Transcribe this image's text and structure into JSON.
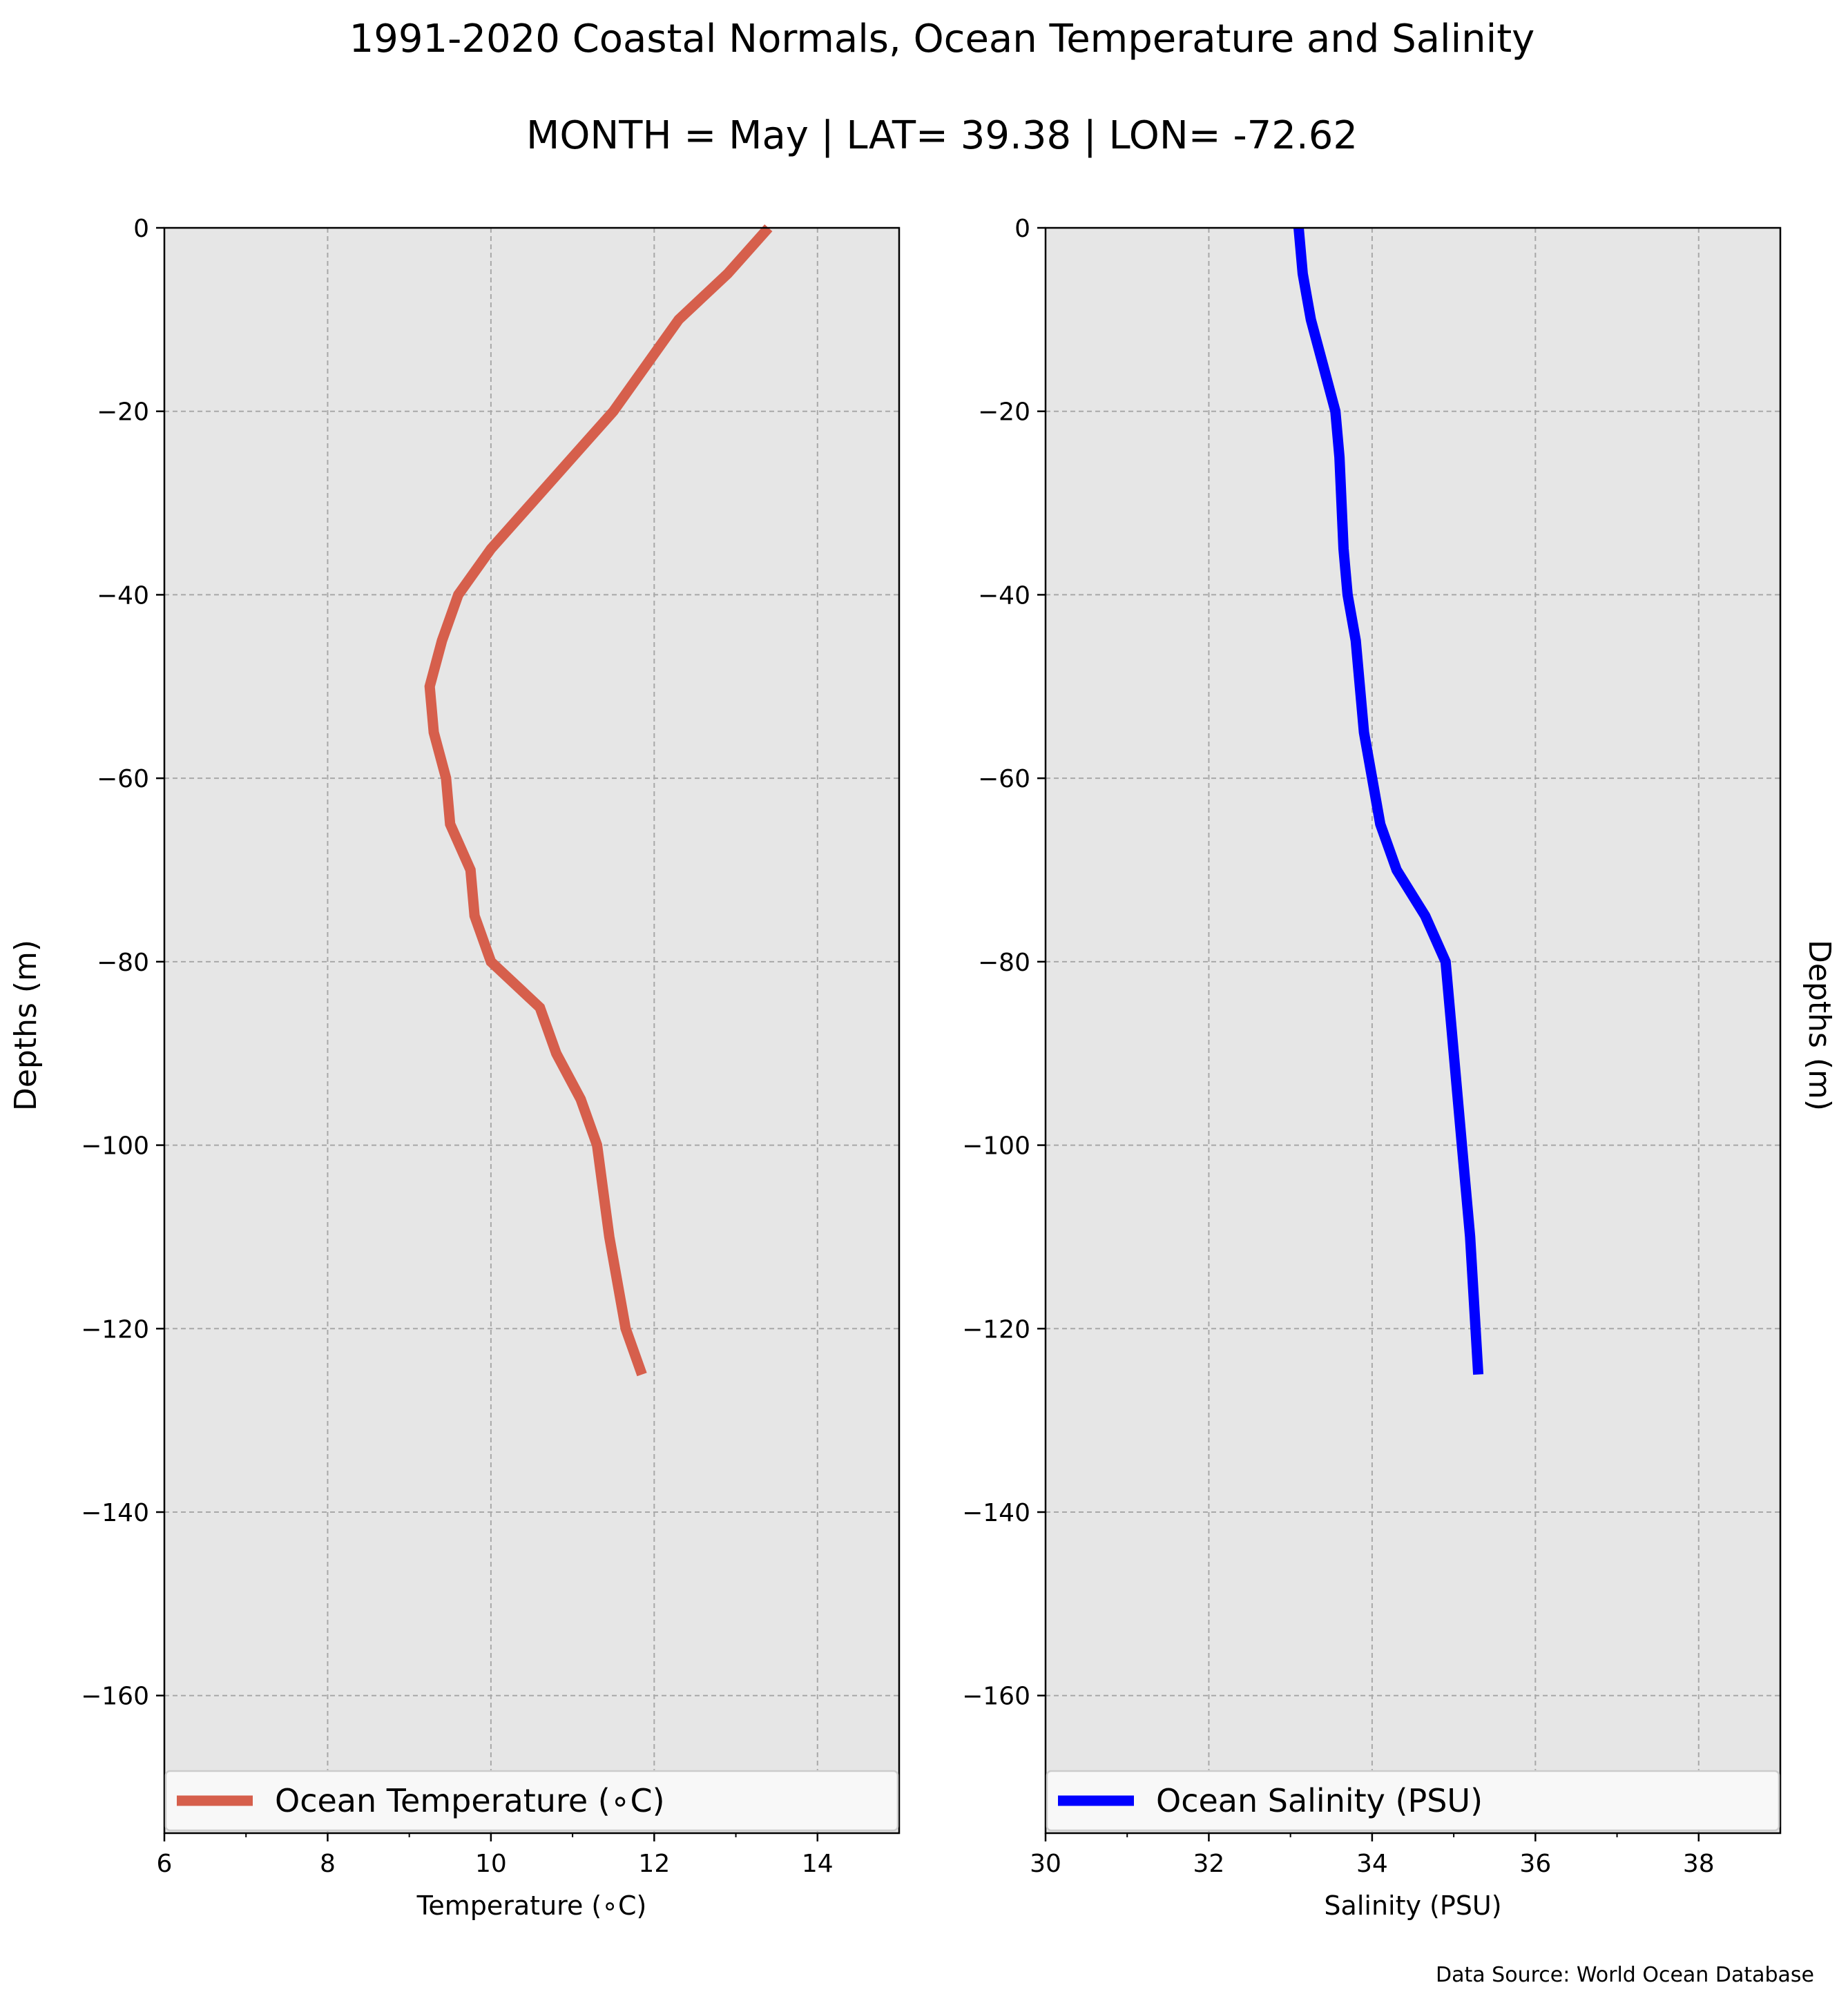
{
  "figure": {
    "title": "1991-2020 Coastal Normals, Ocean Temperature and Salinity",
    "subtitle": "MONTH = May | LAT= 39.38 | LON= -72.62",
    "source_note": "Data Source: World Ocean Database",
    "left_ylabel": "Depths (m)",
    "right_ylabel": "Depths (m)"
  },
  "chart_data": [
    {
      "type": "line",
      "xlabel": "Temperature (∘C)",
      "ylabel": "Depths (m)",
      "xlim": [
        6,
        15
      ],
      "ylim": [
        -175,
        0
      ],
      "xticks": [
        6,
        8,
        10,
        12,
        14
      ],
      "xtick_labels": [
        "6",
        "8",
        "10",
        "12",
        "14"
      ],
      "yticks": [
        0,
        -20,
        -40,
        -60,
        -80,
        -100,
        -120,
        -140,
        -160
      ],
      "ytick_labels": [
        "0",
        "−20",
        "−40",
        "−60",
        "−80",
        "−100",
        "−120",
        "−140",
        "−160"
      ],
      "grid": true,
      "legend_position": "bottom",
      "series": [
        {
          "name": "Ocean Temperature (∘C)",
          "color": "#d65f4c",
          "x": [
            13.4,
            12.9,
            12.3,
            11.9,
            11.5,
            11.0,
            10.5,
            10.0,
            9.6,
            9.4,
            9.25,
            9.3,
            9.45,
            9.5,
            9.75,
            9.8,
            10.0,
            10.6,
            10.8,
            11.1,
            11.3,
            11.45,
            11.65,
            11.85
          ],
          "y": [
            0,
            -5,
            -10,
            -15,
            -20,
            -25,
            -30,
            -35,
            -40,
            -45,
            -50,
            -55,
            -60,
            -65,
            -70,
            -75,
            -80,
            -85,
            -90,
            -95,
            -100,
            -110,
            -120,
            -125
          ]
        }
      ]
    },
    {
      "type": "line",
      "xlabel": "Salinity (PSU)",
      "ylabel": "Depths (m)",
      "xlim": [
        30,
        39
      ],
      "ylim": [
        -175,
        0
      ],
      "xticks": [
        30,
        32,
        34,
        36,
        38
      ],
      "xtick_labels": [
        "30",
        "32",
        "34",
        "36",
        "38"
      ],
      "yticks": [
        0,
        -20,
        -40,
        -60,
        -80,
        -100,
        -120,
        -140,
        -160
      ],
      "ytick_labels": [
        "0",
        "−20",
        "−40",
        "−60",
        "−80",
        "−100",
        "−120",
        "−140",
        "−160"
      ],
      "grid": true,
      "legend_position": "bottom",
      "series": [
        {
          "name": "Ocean Salinity (PSU)",
          "color": "#0000ff",
          "x": [
            33.1,
            33.15,
            33.25,
            33.4,
            33.55,
            33.6,
            33.65,
            33.7,
            33.8,
            33.9,
            34.0,
            34.1,
            34.3,
            34.65,
            34.9,
            34.95,
            35.0,
            35.1,
            35.2,
            35.3
          ],
          "y": [
            0,
            -5,
            -10,
            -15,
            -20,
            -25,
            -35,
            -40,
            -45,
            -55,
            -60,
            -65,
            -70,
            -75,
            -80,
            -85,
            -90,
            -100,
            -110,
            -125
          ]
        }
      ]
    }
  ]
}
